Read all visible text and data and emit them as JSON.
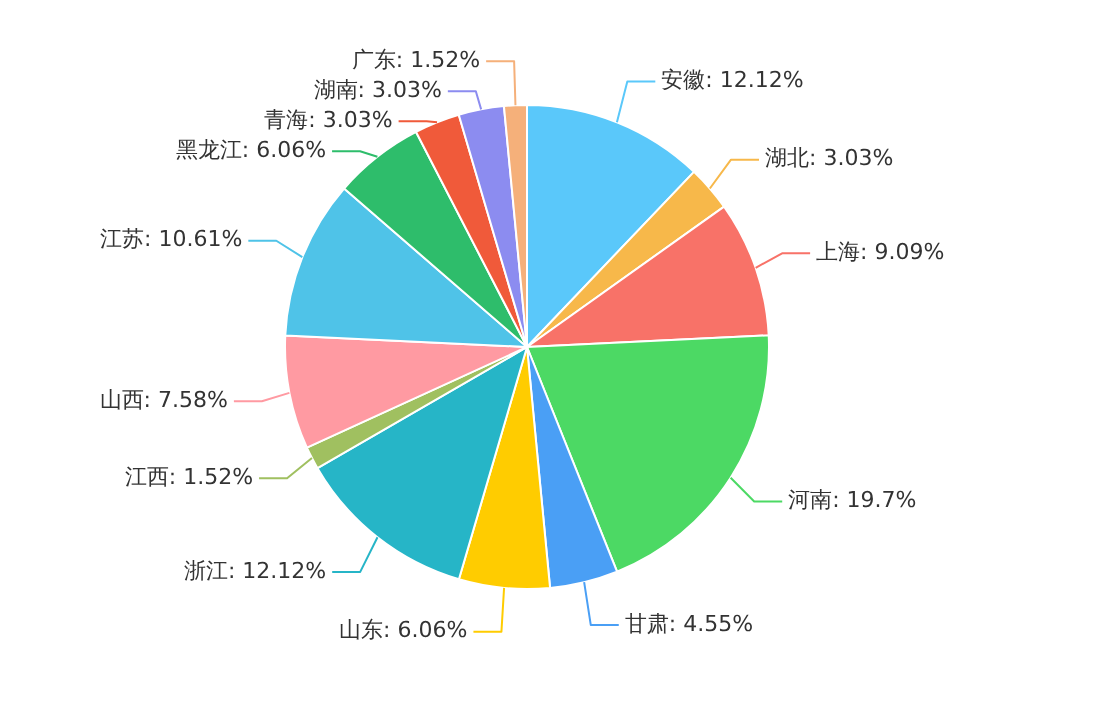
{
  "chart_data": {
    "type": "pie",
    "categories": [
      "安徽",
      "湖北",
      "上海",
      "河南",
      "甘肃",
      "山东",
      "浙江",
      "江西",
      "山西",
      "江苏",
      "黑龙江",
      "青海",
      "湖南",
      "广东"
    ],
    "values": [
      12.12,
      3.03,
      9.09,
      19.7,
      4.55,
      6.06,
      12.12,
      1.52,
      7.58,
      10.61,
      6.06,
      3.03,
      3.03,
      1.52
    ],
    "colors": [
      "#5ac8fa",
      "#f7b84a",
      "#f87268",
      "#4cd964",
      "#4a9ff5",
      "#ffcc00",
      "#26b5c7",
      "#a0c060",
      "#ff9aa2",
      "#4fc3e8",
      "#2ebd6b",
      "#f05a3a",
      "#8c8cf0",
      "#f5b07a"
    ],
    "value_labels": [
      "12.12%",
      "3.03%",
      "9.09%",
      "19.7%",
      "4.55%",
      "6.06%",
      "12.12%",
      "1.52%",
      "7.58%",
      "10.61%",
      "6.06%",
      "3.03%",
      "3.03%",
      "1.52%"
    ],
    "legend": false
  }
}
